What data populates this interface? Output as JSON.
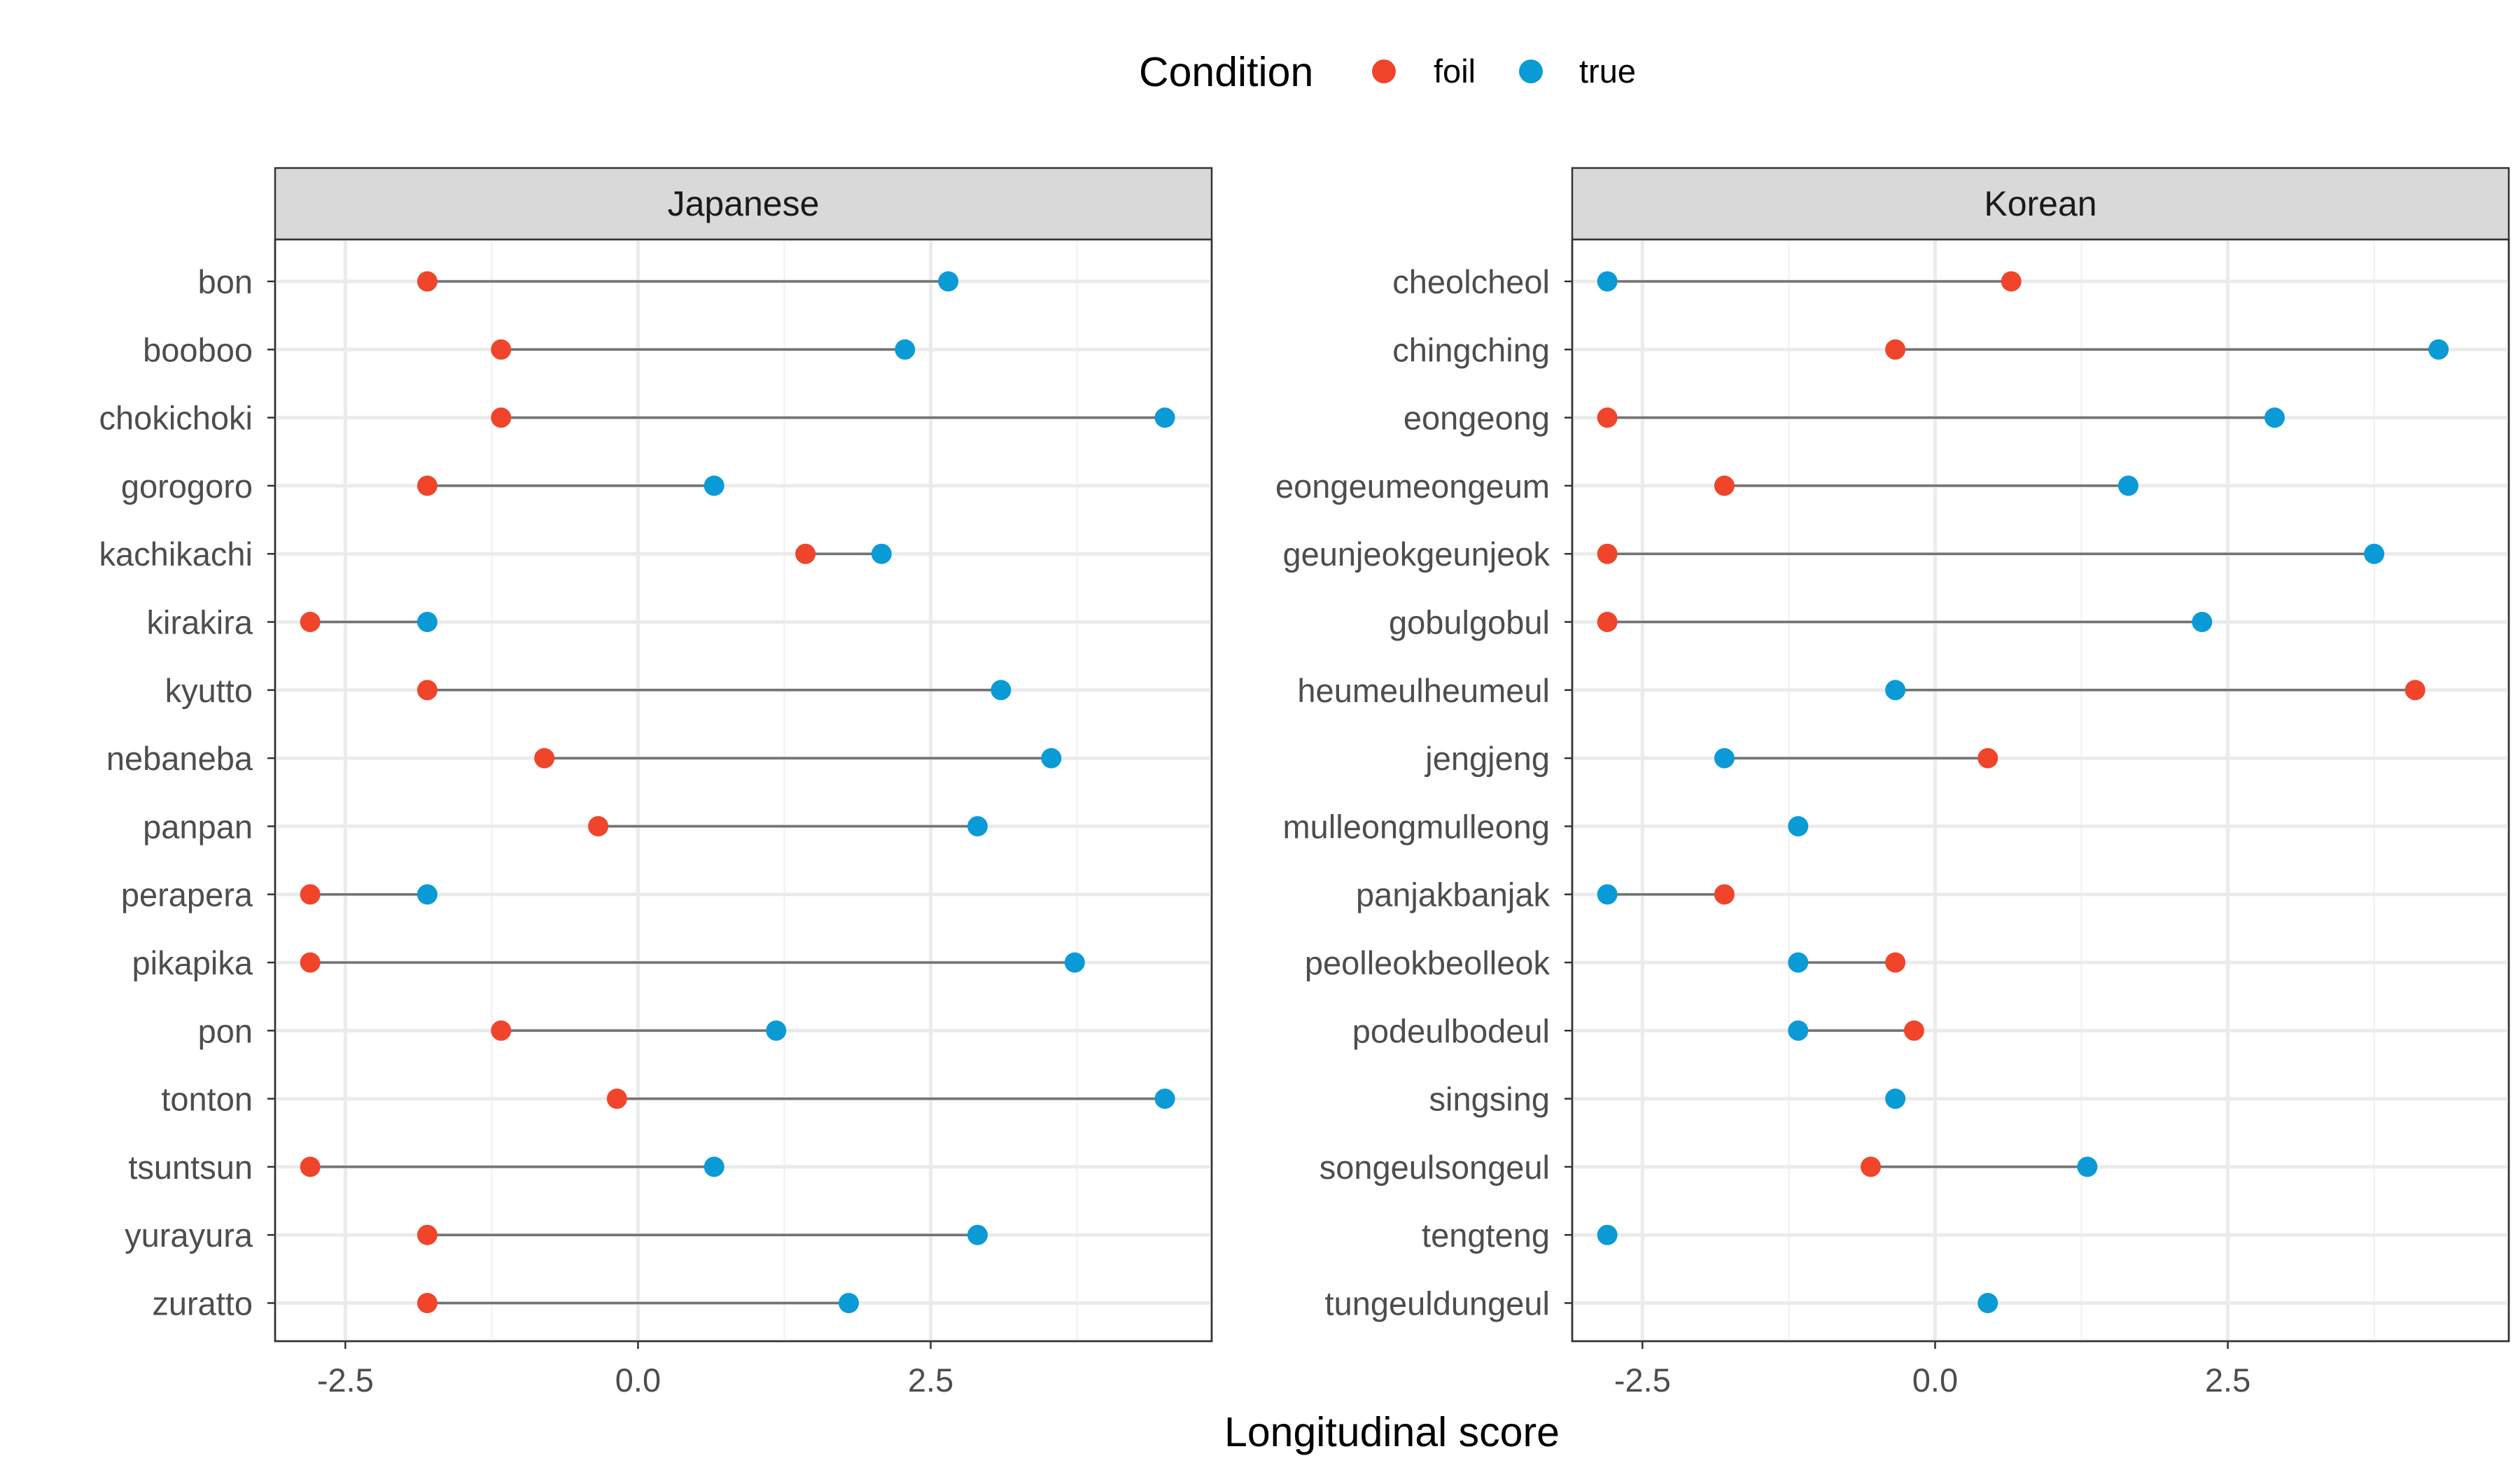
{
  "chart_data": {
    "type": "dumbbell",
    "xlabel": "Longitudinal score",
    "legend": {
      "title": "Condition",
      "position": "top",
      "entries": [
        {
          "name": "foil",
          "color": "#F0442B"
        },
        {
          "name": "true",
          "color": "#0A9BD7"
        }
      ]
    },
    "xlim": [
      -3.1,
      4.9
    ],
    "xticks": [
      -2.5,
      0.0,
      2.5
    ],
    "xtick_labels": [
      "-2.5",
      "0.0",
      "2.5"
    ],
    "grid": true,
    "panels": [
      {
        "title": "Japanese",
        "categories": [
          "bon",
          "booboo",
          "chokichoki",
          "gorogoro",
          "kachikachi",
          "kirakira",
          "kyutto",
          "nebaneba",
          "panpan",
          "perapera",
          "pikapika",
          "pon",
          "tonton",
          "tsuntsun",
          "yurayura",
          "zuratto"
        ],
        "foil": [
          -1.8,
          -1.17,
          -1.17,
          -1.8,
          1.43,
          -2.8,
          -1.8,
          -0.8,
          -0.34,
          -2.8,
          -2.8,
          -1.17,
          -0.18,
          -2.8,
          -1.8,
          -1.8
        ],
        "true": [
          2.65,
          2.28,
          4.5,
          0.65,
          2.08,
          -1.8,
          3.1,
          3.53,
          2.9,
          -1.8,
          3.73,
          1.18,
          4.5,
          0.65,
          2.9,
          1.8
        ]
      },
      {
        "title": "Korean",
        "categories": [
          "cheolcheol",
          "chingching",
          "eongeong",
          "eongeumeongeum",
          "geunjeokgeunjeok",
          "gobulgobul",
          "heumeulheumeul",
          "jengjeng",
          "mulleongmulleong",
          "panjakbanjak",
          "peolleokbeolleok",
          "podeulbodeul",
          "singsing",
          "songeulsongeul",
          "tengteng",
          "tungeuldungeul"
        ],
        "foil": [
          0.65,
          -0.34,
          -2.8,
          -1.8,
          -2.8,
          -2.8,
          4.1,
          0.45,
          null,
          -1.8,
          -0.34,
          -0.18,
          null,
          -0.55,
          null,
          null
        ],
        "true": [
          -2.8,
          4.3,
          2.9,
          1.65,
          3.75,
          2.28,
          -0.34,
          -1.8,
          -1.17,
          -2.8,
          -1.17,
          -1.17,
          -0.34,
          1.3,
          -2.8,
          0.45
        ]
      }
    ]
  }
}
